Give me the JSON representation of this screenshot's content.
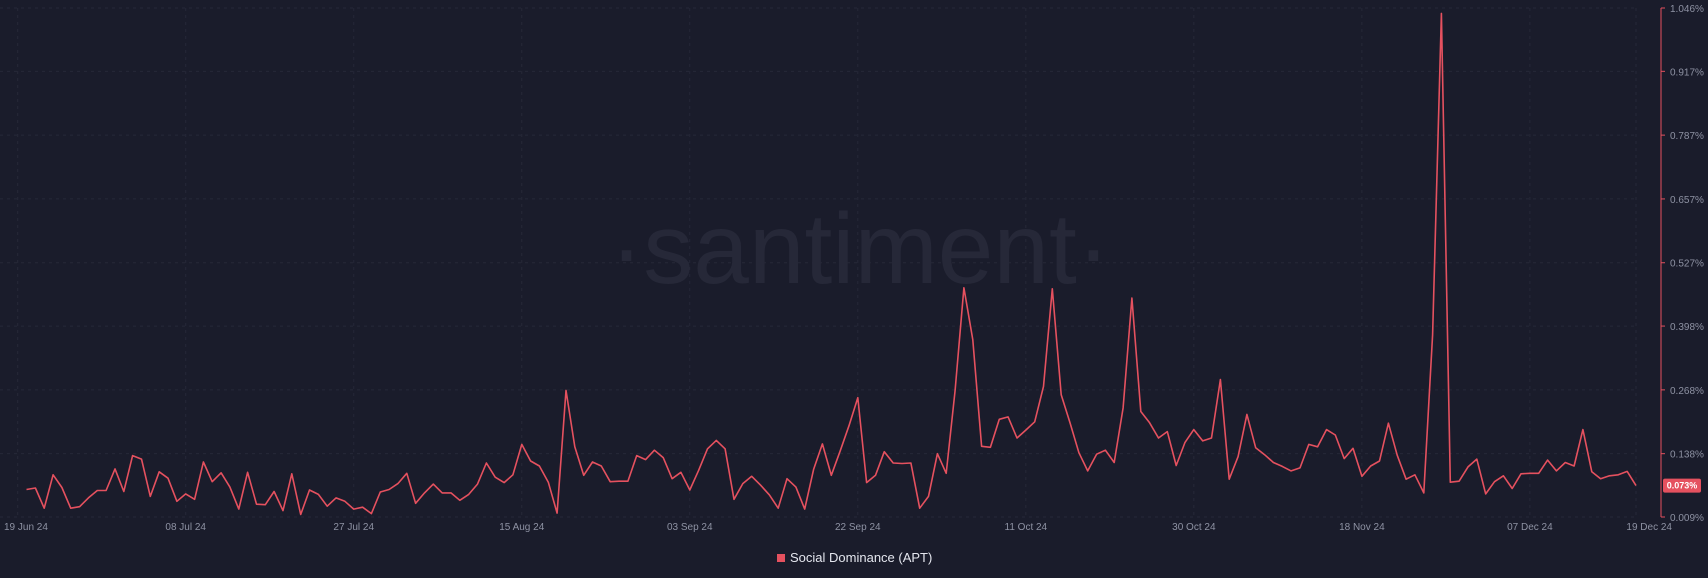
{
  "watermark": "·santiment·",
  "colors": {
    "background": "#1a1c2b",
    "series": "#e5515f",
    "grid": "#262838",
    "axis_text": "#8e92a3"
  },
  "chart_data": {
    "type": "line",
    "y_axis_position": "right",
    "y_scale": "linear",
    "grid": true,
    "legend_position": "bottom-center",
    "ylim": [
      0.009,
      1.046
    ],
    "y_ticks": [
      0.009,
      0.138,
      0.268,
      0.398,
      0.527,
      0.657,
      0.787,
      0.917,
      1.046
    ],
    "y_tick_labels": [
      "0.009%",
      "0.138%",
      "0.268%",
      "0.398%",
      "0.527%",
      "0.657%",
      "0.787%",
      "0.917%",
      "1.046%"
    ],
    "x_start": "2024-06-17",
    "x_end": "2024-12-19",
    "x_ticks": [
      {
        "date": "2024-06-19",
        "label": "19 Jun 24"
      },
      {
        "date": "2024-07-08",
        "label": "08 Jul 24"
      },
      {
        "date": "2024-07-27",
        "label": "27 Jul 24"
      },
      {
        "date": "2024-08-15",
        "label": "15 Aug 24"
      },
      {
        "date": "2024-09-03",
        "label": "03 Sep 24"
      },
      {
        "date": "2024-09-22",
        "label": "22 Sep 24"
      },
      {
        "date": "2024-10-11",
        "label": "11 Oct 24"
      },
      {
        "date": "2024-10-30",
        "label": "30 Oct 24"
      },
      {
        "date": "2024-11-18",
        "label": "18 Nov 24"
      },
      {
        "date": "2024-12-07",
        "label": "07 Dec 24"
      },
      {
        "date": "2024-12-19",
        "label": "19 Dec 24"
      }
    ],
    "latest_value_label": "0.073%",
    "series": [
      {
        "name": "Social Dominance (APT)",
        "color": "#e5515f",
        "values": [
          0.065,
          0.068,
          0.027,
          0.095,
          0.069,
          0.027,
          0.03,
          0.048,
          0.063,
          0.063,
          0.107,
          0.061,
          0.134,
          0.127,
          0.051,
          0.101,
          0.088,
          0.041,
          0.056,
          0.045,
          0.121,
          0.081,
          0.099,
          0.07,
          0.025,
          0.1,
          0.035,
          0.034,
          0.061,
          0.022,
          0.097,
          0.014,
          0.064,
          0.055,
          0.031,
          0.048,
          0.041,
          0.025,
          0.029,
          0.016,
          0.06,
          0.065,
          0.077,
          0.098,
          0.037,
          0.058,
          0.076,
          0.058,
          0.058,
          0.043,
          0.055,
          0.076,
          0.119,
          0.09,
          0.079,
          0.095,
          0.157,
          0.123,
          0.113,
          0.08,
          0.017,
          0.267,
          0.152,
          0.094,
          0.121,
          0.113,
          0.081,
          0.082,
          0.082,
          0.134,
          0.126,
          0.145,
          0.13,
          0.087,
          0.1,
          0.064,
          0.104,
          0.148,
          0.165,
          0.148,
          0.045,
          0.077,
          0.092,
          0.074,
          0.054,
          0.027,
          0.087,
          0.07,
          0.025,
          0.106,
          0.158,
          0.094,
          0.143,
          0.195,
          0.252,
          0.079,
          0.094,
          0.142,
          0.119,
          0.118,
          0.119,
          0.027,
          0.051,
          0.138,
          0.098,
          0.267,
          0.476,
          0.37,
          0.153,
          0.151,
          0.208,
          0.213,
          0.17,
          0.186,
          0.203,
          0.275,
          0.474,
          0.258,
          0.201,
          0.14,
          0.103,
          0.137,
          0.145,
          0.12,
          0.231,
          0.455,
          0.224,
          0.201,
          0.17,
          0.183,
          0.114,
          0.161,
          0.187,
          0.164,
          0.17,
          0.289,
          0.086,
          0.132,
          0.218,
          0.15,
          0.136,
          0.12,
          0.112,
          0.103,
          0.109,
          0.157,
          0.152,
          0.187,
          0.176,
          0.128,
          0.149,
          0.092,
          0.113,
          0.123,
          0.2,
          0.135,
          0.086,
          0.095,
          0.058,
          0.38,
          1.035,
          0.08,
          0.082,
          0.111,
          0.127,
          0.056,
          0.081,
          0.093,
          0.067,
          0.097,
          0.098,
          0.098,
          0.125,
          0.103,
          0.12,
          0.113,
          0.187,
          0.101,
          0.087,
          0.093,
          0.095,
          0.102,
          0.073
        ]
      }
    ]
  }
}
